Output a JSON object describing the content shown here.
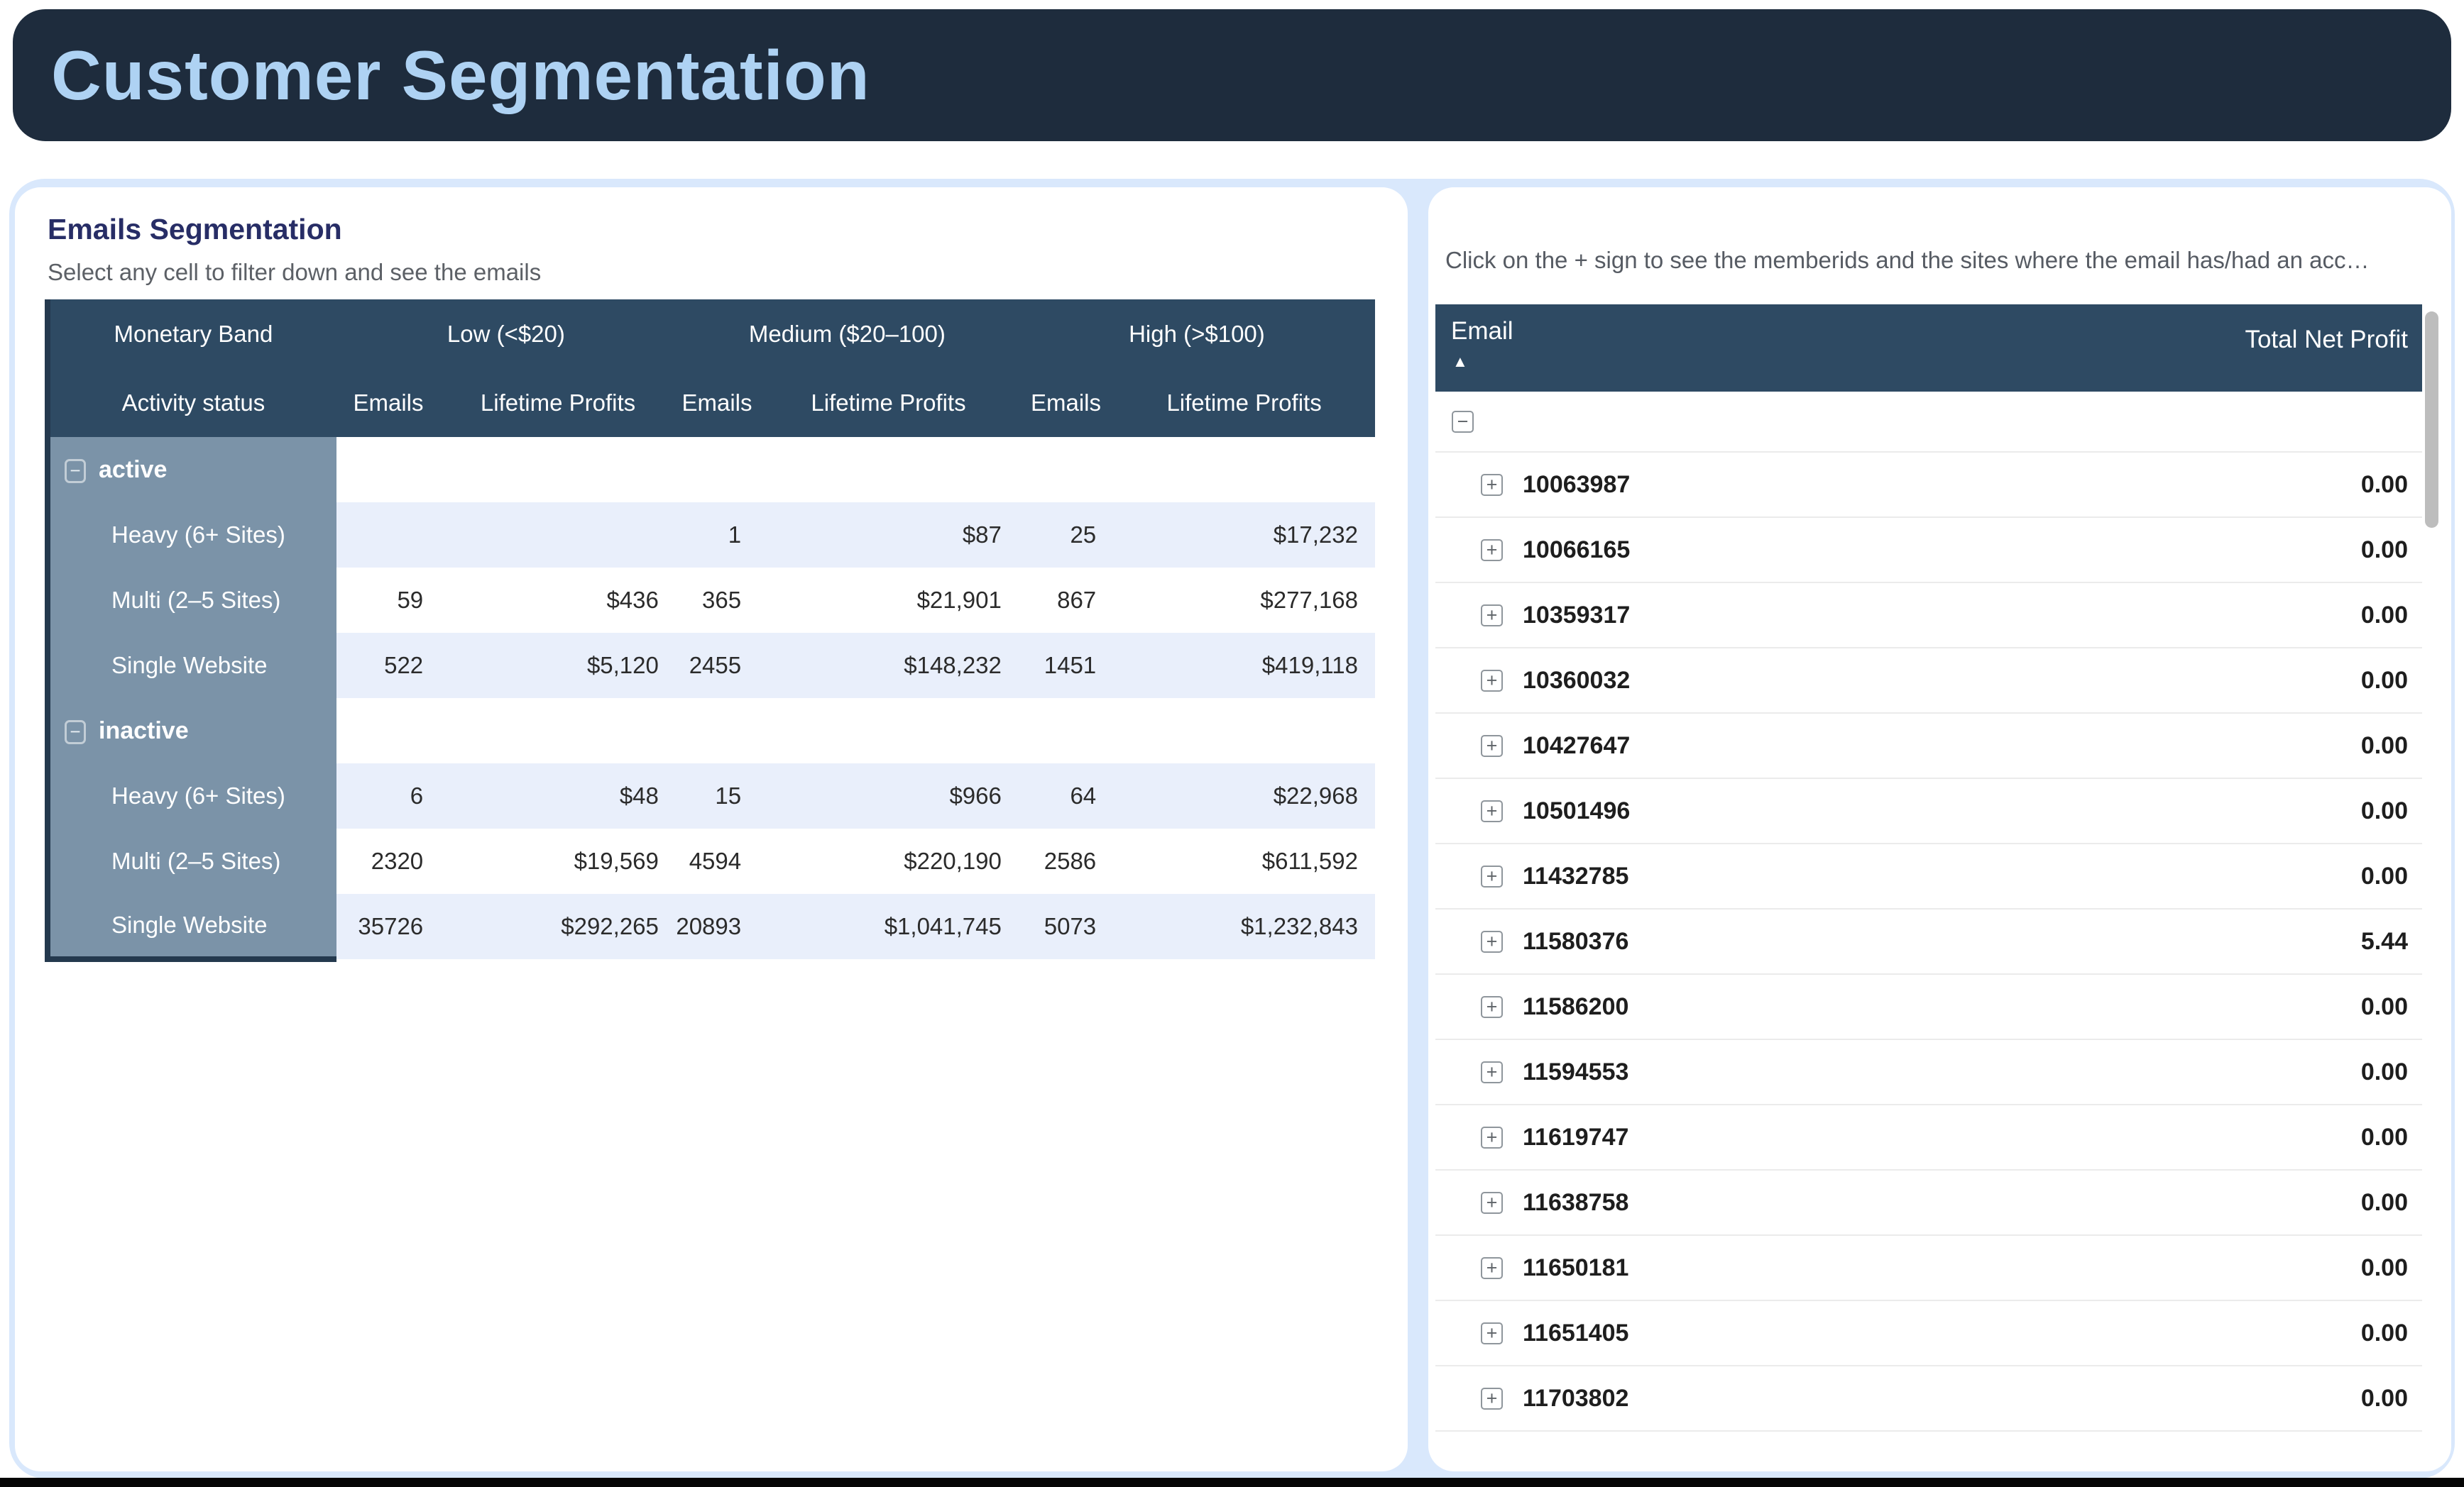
{
  "banner": {
    "title": "Customer Segmentation"
  },
  "colors": {
    "banner_bg": "#1e2c3d",
    "banner_title": "#aed2f3",
    "page_bg": "#d9e8fc",
    "table_header_bg": "#2e4a63",
    "row_header_bg": "#7b93a8",
    "alt_row_bg": "#e9effb",
    "separator": "#ebebeb"
  },
  "left_panel": {
    "title": "Emails Segmentation",
    "subtitle": "Select any cell to filter down and see the emails",
    "pivot": {
      "corner_row1": "Monetary Band",
      "corner_row2": "Activity status",
      "column_bands": [
        "Low (<$20)",
        "Medium ($20–100)",
        "High (>$100)"
      ],
      "band_subcolumns": [
        "Emails",
        "Lifetime Profits"
      ],
      "collapse_icon": "−",
      "groups": [
        {
          "label": "active",
          "rows": [
            {
              "label": "Heavy (6+ Sites)",
              "cells": [
                "",
                "",
                "1",
                "$87",
                "25",
                "$17,232"
              ]
            },
            {
              "label": "Multi (2–5 Sites)",
              "cells": [
                "59",
                "$436",
                "365",
                "$21,901",
                "867",
                "$277,168"
              ]
            },
            {
              "label": "Single Website",
              "cells": [
                "522",
                "$5,120",
                "2455",
                "$148,232",
                "1451",
                "$419,118"
              ]
            }
          ]
        },
        {
          "label": "inactive",
          "rows": [
            {
              "label": "Heavy (6+ Sites)",
              "cells": [
                "6",
                "$48",
                "15",
                "$966",
                "64",
                "$22,968"
              ]
            },
            {
              "label": "Multi (2–5 Sites)",
              "cells": [
                "2320",
                "$19,569",
                "4594",
                "$220,190",
                "2586",
                "$611,592"
              ]
            },
            {
              "label": "Single Website",
              "cells": [
                "35726",
                "$292,265",
                "20893",
                "$1,041,745",
                "5073",
                "$1,232,843"
              ]
            }
          ]
        }
      ]
    }
  },
  "right_panel": {
    "caption": "Click on the + sign to see the memberids and the sites where the email has/had an acc…",
    "table": {
      "col_email": "Email",
      "col_profit": "Total Net Profit",
      "sort_ascending_icon": "▲",
      "collapse_all_icon": "−",
      "expand_icon": "+",
      "rows": [
        {
          "email": "10063987",
          "total_net_profit": "0.00"
        },
        {
          "email": "10066165",
          "total_net_profit": "0.00"
        },
        {
          "email": "10359317",
          "total_net_profit": "0.00"
        },
        {
          "email": "10360032",
          "total_net_profit": "0.00"
        },
        {
          "email": "10427647",
          "total_net_profit": "0.00"
        },
        {
          "email": "10501496",
          "total_net_profit": "0.00"
        },
        {
          "email": "11432785",
          "total_net_profit": "0.00"
        },
        {
          "email": "11580376",
          "total_net_profit": "5.44"
        },
        {
          "email": "11586200",
          "total_net_profit": "0.00"
        },
        {
          "email": "11594553",
          "total_net_profit": "0.00"
        },
        {
          "email": "11619747",
          "total_net_profit": "0.00"
        },
        {
          "email": "11638758",
          "total_net_profit": "0.00"
        },
        {
          "email": "11650181",
          "total_net_profit": "0.00"
        },
        {
          "email": "11651405",
          "total_net_profit": "0.00"
        },
        {
          "email": "11703802",
          "total_net_profit": "0.00"
        }
      ]
    }
  }
}
